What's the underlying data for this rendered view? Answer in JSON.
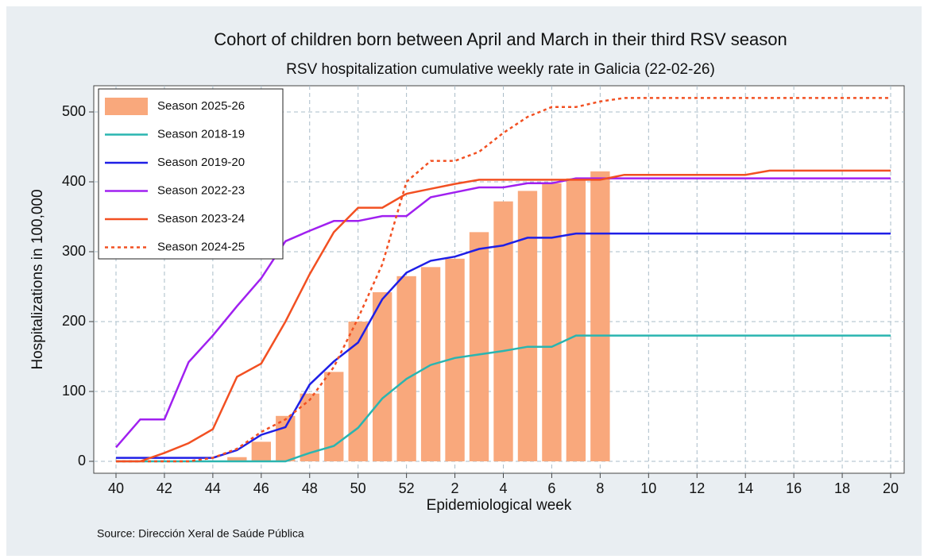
{
  "chart_data": {
    "type": "bar_line",
    "title": "Cohort of children born between April and March in their third RSV season",
    "subtitle": "RSV hospitalization cumulative weekly rate in Galicia (22-02-26)",
    "x_label": "Epidemiological week",
    "y_label": "Hospitalizations in 100,000",
    "source": "Source: Dirección Xeral de Saúde Pública",
    "categories": [
      40,
      null,
      42,
      null,
      44,
      null,
      46,
      null,
      48,
      null,
      50,
      null,
      52,
      null,
      2,
      null,
      4,
      null,
      6,
      null,
      8,
      null,
      10,
      null,
      12,
      null,
      14,
      null,
      16,
      null,
      18,
      null,
      20
    ],
    "ylim": [
      0,
      500
    ],
    "yticks": [
      0,
      100,
      200,
      300,
      400,
      500
    ],
    "grid": true,
    "legend": "upper left",
    "series": [
      {
        "name": "Season 2025-26",
        "kind": "bar",
        "color": "#f9a87c",
        "values": [
          0,
          0,
          0,
          0,
          0,
          6,
          28,
          65,
          97,
          128,
          200,
          242,
          265,
          278,
          290,
          328,
          372,
          387,
          398,
          405,
          415,
          null,
          null,
          null,
          null,
          null,
          null,
          null,
          null,
          null,
          null,
          null,
          null
        ]
      },
      {
        "name": "Season 2018-19",
        "kind": "line",
        "color": "#2ab5b0",
        "values": [
          0,
          0,
          0,
          0,
          0,
          0,
          0,
          0,
          12,
          22,
          48,
          90,
          118,
          138,
          148,
          153,
          158,
          164,
          164,
          180,
          180,
          180,
          180,
          180,
          180,
          180,
          180,
          180,
          180,
          180,
          180,
          180,
          180
        ]
      },
      {
        "name": "Season 2019-20",
        "kind": "line",
        "color": "#1f1fe6",
        "values": [
          5,
          5,
          5,
          5,
          5,
          16,
          38,
          49,
          110,
          143,
          170,
          232,
          270,
          287,
          293,
          304,
          309,
          320,
          320,
          326,
          326,
          326,
          326,
          326,
          326,
          326,
          326,
          326,
          326,
          326,
          326,
          326,
          326
        ]
      },
      {
        "name": "Season 2022-23",
        "kind": "line",
        "color": "#a020f0",
        "values": [
          20,
          60,
          60,
          142,
          180,
          222,
          262,
          315,
          330,
          344,
          344,
          351,
          351,
          378,
          385,
          392,
          392,
          398,
          398,
          405,
          405,
          405,
          405,
          405,
          405,
          405,
          405,
          405,
          405,
          405,
          405,
          405,
          405
        ]
      },
      {
        "name": "Season 2023-24",
        "kind": "line",
        "color": "#f25022",
        "values": [
          0,
          0,
          12,
          26,
          46,
          121,
          140,
          200,
          268,
          328,
          363,
          363,
          383,
          390,
          397,
          403,
          403,
          403,
          403,
          403,
          403,
          410,
          410,
          410,
          410,
          410,
          410,
          416,
          416,
          416,
          416,
          416,
          416
        ]
      },
      {
        "name": "Season 2024-25",
        "kind": "line",
        "dashed": true,
        "color": "#f25022",
        "values": [
          0,
          0,
          0,
          0,
          5,
          18,
          42,
          60,
          88,
          135,
          205,
          282,
          400,
          430,
          430,
          443,
          470,
          493,
          507,
          507,
          515,
          520,
          520,
          520,
          520,
          520,
          520,
          520,
          520,
          520,
          520,
          520,
          520
        ]
      }
    ]
  }
}
